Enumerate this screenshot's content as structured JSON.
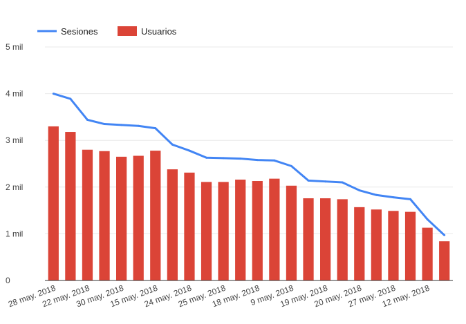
{
  "chart_data": {
    "type": "bar",
    "categories": [
      "28 may. 2018",
      "",
      "22 may. 2018",
      "",
      "30 may. 2018",
      "",
      "15 may. 2018",
      "",
      "24 may. 2018",
      "",
      "25 may. 2018",
      "",
      "18 may. 2018",
      "",
      "9 may. 2018",
      "",
      "19 may. 2018",
      "",
      "20 may. 2018",
      "",
      "27 may. 2018",
      "",
      "12 may. 2018",
      ""
    ],
    "series": [
      {
        "name": "Usuarios",
        "kind": "bar",
        "color": "#db4437",
        "values": [
          3300,
          3180,
          2800,
          2770,
          2650,
          2670,
          2780,
          2380,
          2310,
          2110,
          2110,
          2160,
          2130,
          2180,
          2030,
          1760,
          1760,
          1740,
          1570,
          1520,
          1490,
          1470,
          1130,
          840
        ]
      },
      {
        "name": "Sesiones",
        "kind": "line",
        "color": "#4285f4",
        "values": [
          4000,
          3890,
          3440,
          3350,
          3330,
          3310,
          3260,
          2910,
          2780,
          2630,
          2620,
          2610,
          2580,
          2570,
          2450,
          2140,
          2120,
          2100,
          1930,
          1830,
          1780,
          1740,
          1310,
          970
        ]
      }
    ],
    "y_ticks": [
      {
        "value": 0,
        "label": "0"
      },
      {
        "value": 1000,
        "label": "1 mil"
      },
      {
        "value": 2000,
        "label": "2 mil"
      },
      {
        "value": 3000,
        "label": "3 mil"
      },
      {
        "value": 4000,
        "label": "4 mil"
      },
      {
        "value": 5000,
        "label": "5 mil"
      }
    ],
    "ylim": [
      0,
      5000
    ],
    "grid": true,
    "legend_position": "top-left",
    "title": "",
    "xlabel": "",
    "ylabel": ""
  }
}
